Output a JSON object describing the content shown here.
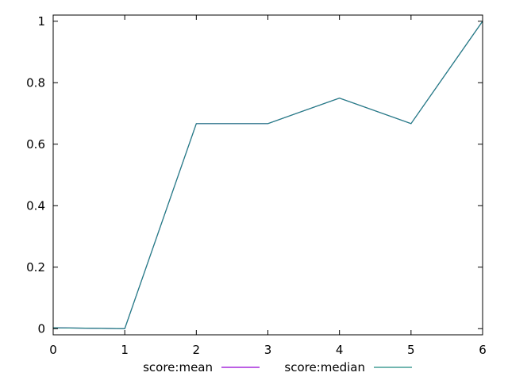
{
  "chart_data": {
    "type": "line",
    "title": "",
    "xlabel": "",
    "ylabel": "",
    "xlim": [
      0,
      6
    ],
    "ylim": [
      -0.02,
      1.02
    ],
    "xticks": [
      0,
      1,
      2,
      3,
      4,
      5,
      6
    ],
    "xtick_labels": [
      "0",
      "1",
      "2",
      "3",
      "4",
      "5",
      "6"
    ],
    "yticks": [
      0,
      0.2,
      0.4,
      0.6,
      0.8,
      1
    ],
    "ytick_labels": [
      "0",
      "0.2",
      "0.4",
      "0.6",
      "0.8",
      "1"
    ],
    "grid": false,
    "legend_position": "bottom-center",
    "x": [
      0,
      1,
      2,
      3,
      4,
      5,
      6
    ],
    "series": [
      {
        "name": "score:mean",
        "color": "#9400d3",
        "values": [
          0.003,
          0.0,
          0.667,
          0.667,
          0.75,
          0.667,
          1.0
        ]
      },
      {
        "name": "score:median",
        "color": "#1e8a80",
        "values": [
          0.003,
          0.0,
          0.667,
          0.667,
          0.75,
          0.667,
          1.0
        ]
      }
    ]
  }
}
